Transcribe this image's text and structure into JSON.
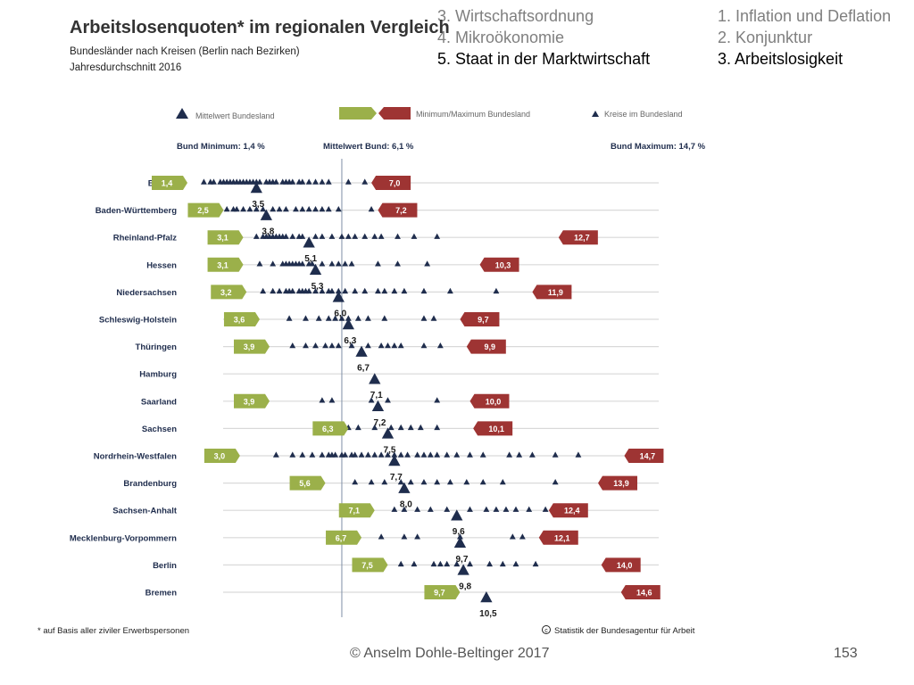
{
  "nav": {
    "left": [
      "3. Wirtschaftsordnung",
      "4. Mikroökonomie",
      "5. Staat in der Marktwirtschaft"
    ],
    "left_active": 2,
    "right": [
      "1. Inflation und Deflation",
      "2. Konjunktur",
      "3. Arbeitslosigkeit"
    ],
    "right_active": 2
  },
  "footer": {
    "copyright": "© Anselm Dohle-Beltinger 2017",
    "page": "153"
  },
  "colors": {
    "navy": "#1f2d4d",
    "green": "#9bb04a",
    "red": "#9e3433",
    "grid": "#d9d9d9",
    "mean_line": "#7f8fa6"
  },
  "chart_data": {
    "type": "scatter",
    "title": "Arbeitslosenquoten* im regionalen Vergleich",
    "subtitle": [
      "Bundesländer nach Kreisen (Berlin nach Bezirken)",
      "Jahresdurchschnitt 2016"
    ],
    "legend": {
      "mean": "Mittelwert Bundesland",
      "minmax": "Minimum/Maximum  Bundesland",
      "districts": "Kreise im Bundesland"
    },
    "stats": {
      "min_label": "Bund Minimum: 1,4 %",
      "mean_label": "Mittelwert Bund: 6,1 %",
      "max_label": "Bund Maximum: 14,7 %",
      "bund_mean": 6.1
    },
    "xlim": [
      0.5,
      15.5
    ],
    "footnote": "* auf Basis aller ziviler Erwerbspersonen",
    "source": "Statistik der Bundesagentur für Arbeit",
    "states": [
      {
        "name": "Bayern",
        "mean": 3.5,
        "mean_label": "3,5",
        "min": 1.4,
        "min_label": "1,4",
        "max": 7.0,
        "max_label": "7,0",
        "districts": [
          1.9,
          2.1,
          2.2,
          2.4,
          2.5,
          2.6,
          2.7,
          2.8,
          2.9,
          3.0,
          3.1,
          3.2,
          3.3,
          3.4,
          3.5,
          3.6,
          3.8,
          3.9,
          4.0,
          4.1,
          4.3,
          4.4,
          4.5,
          4.6,
          4.8,
          4.9,
          5.1,
          5.3,
          5.5,
          5.7,
          6.3,
          6.8
        ]
      },
      {
        "name": "Baden-Württemberg",
        "mean": 3.8,
        "mean_label": "3,8",
        "min": 2.5,
        "min_label": "2,5",
        "max": 7.2,
        "max_label": "7,2",
        "districts": [
          2.6,
          2.8,
          2.9,
          3.1,
          3.3,
          3.5,
          3.7,
          4.0,
          4.2,
          4.4,
          4.7,
          4.9,
          5.1,
          5.3,
          5.5,
          5.7,
          6.0,
          7.0
        ]
      },
      {
        "name": "Rheinland-Pfalz",
        "mean": 5.1,
        "mean_label": "5,1",
        "min": 3.1,
        "min_label": "3,1",
        "max": 12.7,
        "max_label": "12,7",
        "districts": [
          3.5,
          3.7,
          3.8,
          3.9,
          4.0,
          4.1,
          4.2,
          4.3,
          4.4,
          4.6,
          4.8,
          4.9,
          5.3,
          5.5,
          5.8,
          6.1,
          6.3,
          6.5,
          6.8,
          7.1,
          7.3,
          7.8,
          8.3,
          9.0
        ]
      },
      {
        "name": "Hessen",
        "mean": 5.3,
        "mean_label": "5,3",
        "min": 3.1,
        "min_label": "3,1",
        "max": 10.3,
        "max_label": "10,3",
        "districts": [
          3.6,
          4.0,
          4.3,
          4.4,
          4.5,
          4.6,
          4.7,
          4.8,
          4.9,
          5.1,
          5.2,
          5.5,
          5.8,
          6.0,
          6.2,
          6.4,
          7.2,
          7.8,
          8.7
        ]
      },
      {
        "name": "Niedersachsen",
        "mean": 6.0,
        "mean_label": "6,0",
        "min": 3.2,
        "min_label": "3,2",
        "max": 11.9,
        "max_label": "11,9",
        "districts": [
          3.7,
          4.0,
          4.2,
          4.4,
          4.5,
          4.6,
          4.8,
          4.9,
          5.0,
          5.1,
          5.3,
          5.5,
          5.7,
          5.8,
          6.0,
          6.2,
          6.5,
          6.8,
          7.2,
          7.4,
          7.7,
          8.0,
          8.6,
          9.4,
          10.8
        ]
      },
      {
        "name": "Schleswig-Holstein",
        "mean": 6.3,
        "mean_label": "6,3",
        "min": 3.6,
        "min_label": "3,6",
        "max": 9.7,
        "max_label": "9,7",
        "districts": [
          4.5,
          5.0,
          5.4,
          5.7,
          5.9,
          6.1,
          6.3,
          6.6,
          6.9,
          7.4,
          8.6,
          8.9
        ]
      },
      {
        "name": "Thüringen",
        "mean": 6.7,
        "mean_label": "6,7",
        "min": 3.9,
        "min_label": "3,9",
        "max": 9.9,
        "max_label": "9,9",
        "districts": [
          4.6,
          5.0,
          5.3,
          5.6,
          5.8,
          6.0,
          6.4,
          6.9,
          7.3,
          7.5,
          7.7,
          7.9,
          8.6,
          9.1
        ]
      },
      {
        "name": "Hamburg",
        "mean": 7.1,
        "mean_label": "7,1",
        "districts": []
      },
      {
        "name": "Saarland",
        "mean": 7.2,
        "mean_label": "7,2",
        "min": 3.9,
        "min_label": "3,9",
        "max": 10.0,
        "max_label": "10,0",
        "districts": [
          5.5,
          5.8,
          7.0,
          7.5,
          9.0
        ]
      },
      {
        "name": "Sachsen",
        "mean": 7.5,
        "mean_label": "7,5",
        "min": 6.3,
        "min_label": "6,3",
        "max": 10.1,
        "max_label": "10,1",
        "districts": [
          6.3,
          6.6,
          7.1,
          7.6,
          7.9,
          8.2,
          8.5,
          9.0
        ]
      },
      {
        "name": "Nordrhein-Westfalen",
        "mean": 7.7,
        "mean_label": "7,7",
        "min": 3.0,
        "min_label": "3,0",
        "max": 14.7,
        "max_label": "14,7",
        "districts": [
          4.1,
          4.6,
          4.9,
          5.2,
          5.5,
          5.7,
          5.8,
          5.9,
          6.1,
          6.2,
          6.4,
          6.5,
          6.7,
          6.9,
          7.1,
          7.3,
          7.5,
          7.7,
          7.9,
          8.1,
          8.4,
          8.6,
          8.8,
          9.0,
          9.3,
          9.6,
          10.0,
          10.4,
          11.2,
          11.5,
          11.9,
          12.6,
          13.3
        ]
      },
      {
        "name": "Brandenburg",
        "mean": 8.0,
        "mean_label": "8,0",
        "min": 5.6,
        "min_label": "5,6",
        "max": 13.9,
        "max_label": "13,9",
        "districts": [
          6.5,
          7.0,
          7.4,
          7.9,
          8.2,
          8.6,
          9.0,
          9.4,
          9.9,
          10.4,
          11.0,
          12.6
        ]
      },
      {
        "name": "Sachsen-Anhalt",
        "mean": 9.6,
        "mean_label": "9,6",
        "min": 7.1,
        "min_label": "7,1",
        "max": 12.4,
        "max_label": "12,4",
        "districts": [
          7.7,
          8.0,
          8.4,
          8.8,
          9.3,
          10.0,
          10.5,
          10.8,
          11.1,
          11.4,
          11.8,
          12.3
        ]
      },
      {
        "name": "Mecklenburg-Vorpommern",
        "mean": 9.7,
        "mean_label": "9,7",
        "min": 6.7,
        "min_label": "6,7",
        "max": 12.1,
        "max_label": "12,1",
        "districts": [
          7.3,
          8.0,
          8.4,
          9.7,
          11.3,
          11.6
        ]
      },
      {
        "name": "Berlin",
        "mean": 9.8,
        "mean_label": "9,8",
        "min": 7.5,
        "min_label": "7,5",
        "max": 14.0,
        "max_label": "14,0",
        "districts": [
          7.9,
          8.3,
          8.9,
          9.1,
          9.3,
          9.6,
          10.0,
          10.6,
          11.0,
          11.4,
          12.0
        ]
      },
      {
        "name": "Bremen",
        "mean": 10.5,
        "mean_label": "10,5",
        "min": 9.7,
        "min_label": "9,7",
        "max": 14.6,
        "max_label": "14,6",
        "districts": []
      }
    ]
  }
}
